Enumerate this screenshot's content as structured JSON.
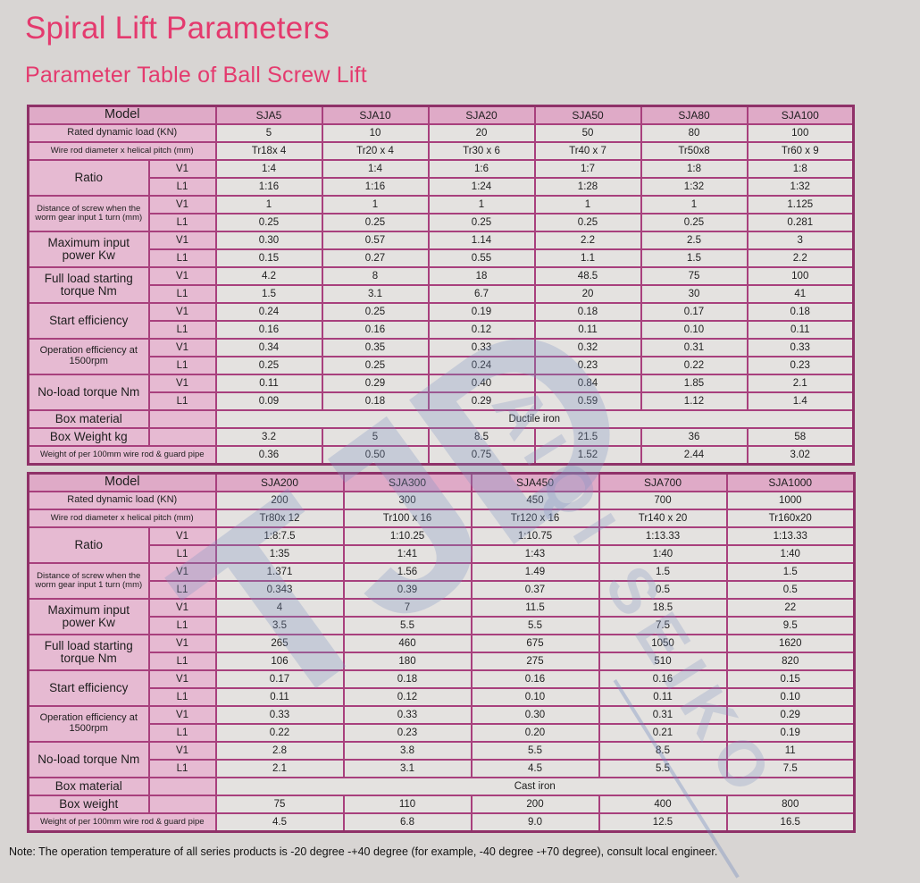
{
  "page": {
    "title": "Spiral Lift Parameters",
    "subtitle": "Parameter Table of Ball Screw Lift",
    "note": "Note: The operation temperature of all series products is -20 degree -+40 degree (for example, -40 degree -+70 degree), consult local engineer.",
    "watermark": {
      "big": "TJD",
      "small": "AIQI SEIKO"
    }
  },
  "colors": {
    "accent_pink": "#e43a6e",
    "header_cell_pink": "#dfaac7",
    "label_cell_pink": "#e6bad2",
    "table_border_magenta": "#a8407d",
    "data_cell_gray": "#e4e2e0",
    "page_background": "#d8d5d3",
    "watermark_blue": "#8094c2"
  },
  "tables": [
    {
      "header_label": "Model",
      "sub_labels": [
        "V1",
        "L1"
      ],
      "models": [
        "SJA5",
        "SJA10",
        "SJA20",
        "SJA50",
        "SJA80",
        "SJA100"
      ],
      "rows": [
        {
          "type": "single",
          "label": "Rated dynamic load (KN)",
          "values": [
            "5",
            "10",
            "20",
            "50",
            "80",
            "100"
          ]
        },
        {
          "type": "single",
          "label": "Wire rod diameter x helical pitch (mm)",
          "values": [
            "Tr18x 4",
            "Tr20 x 4",
            "Tr30 x 6",
            "Tr40 x 7",
            "Tr50x8",
            "Tr60 x 9"
          ]
        },
        {
          "type": "vl",
          "label": "Ratio",
          "v1": [
            "1:4",
            "1:4",
            "1:6",
            "1:7",
            "1:8",
            "1:8"
          ],
          "l1": [
            "1:16",
            "1:16",
            "1:24",
            "1:28",
            "1:32",
            "1:32"
          ]
        },
        {
          "type": "vl",
          "label": "Distance of screw when the worm gear input 1 turn (mm)",
          "v1": [
            "1",
            "1",
            "1",
            "1",
            "1",
            "1.125"
          ],
          "l1": [
            "0.25",
            "0.25",
            "0.25",
            "0.25",
            "0.25",
            "0.281"
          ]
        },
        {
          "type": "vl",
          "label": "Maximum input power Kw",
          "v1": [
            "0.30",
            "0.57",
            "1.14",
            "2.2",
            "2.5",
            "3"
          ],
          "l1": [
            "0.15",
            "0.27",
            "0.55",
            "1.1",
            "1.5",
            "2.2"
          ]
        },
        {
          "type": "vl",
          "label": "Full load starting torque Nm",
          "v1": [
            "4.2",
            "8",
            "18",
            "48.5",
            "75",
            "100"
          ],
          "l1": [
            "1.5",
            "3.1",
            "6.7",
            "20",
            "30",
            "41"
          ]
        },
        {
          "type": "vl",
          "label": "Start efficiency",
          "v1": [
            "0.24",
            "0.25",
            "0.19",
            "0.18",
            "0.17",
            "0.18"
          ],
          "l1": [
            "0.16",
            "0.16",
            "0.12",
            "0.11",
            "0.10",
            "0.11"
          ]
        },
        {
          "type": "vl",
          "label": "Operation efficiency at 1500rpm",
          "v1": [
            "0.34",
            "0.35",
            "0.33",
            "0.32",
            "0.31",
            "0.33"
          ],
          "l1": [
            "0.25",
            "0.25",
            "0.24",
            "0.23",
            "0.22",
            "0.23"
          ]
        },
        {
          "type": "vl",
          "label": "No-load torque Nm",
          "v1": [
            "0.11",
            "0.29",
            "0.40",
            "0.84",
            "1.85",
            "2.1"
          ],
          "l1": [
            "0.09",
            "0.18",
            "0.29",
            "0.59",
            "1.12",
            "1.4"
          ]
        },
        {
          "type": "span",
          "label": "Box material",
          "value": "Ductile iron"
        },
        {
          "type": "subempty",
          "label": "Box Weight kg",
          "values": [
            "3.2",
            "5",
            "8.5",
            "21.5",
            "36",
            "58"
          ]
        },
        {
          "type": "single",
          "label": "Weight of per 100mm wire rod & guard pipe",
          "values": [
            "0.36",
            "0.50",
            "0.75",
            "1.52",
            "2.44",
            "3.02"
          ]
        }
      ]
    },
    {
      "header_label": "Model",
      "sub_labels": [
        "V1",
        "L1"
      ],
      "models": [
        "SJA200",
        "SJA300",
        "SJA450",
        "SJA700",
        "SJA1000"
      ],
      "rows": [
        {
          "type": "single",
          "label": "Rated dynamic load (KN)",
          "values": [
            "200",
            "300",
            "450",
            "700",
            "1000"
          ]
        },
        {
          "type": "single",
          "label": "Wire rod diameter x helical pitch (mm)",
          "values": [
            "Tr80x 12",
            "Tr100 x 16",
            "Tr120 x 16",
            "Tr140 x 20",
            "Tr160x20"
          ]
        },
        {
          "type": "vl",
          "label": "Ratio",
          "v1": [
            "1:8:7.5",
            "1:10.25",
            "1:10.75",
            "1:13.33",
            "1:13.33"
          ],
          "l1": [
            "1:35",
            "1:41",
            "1:43",
            "1:40",
            "1:40"
          ]
        },
        {
          "type": "vl",
          "label": "Distance of screw when the worm gear input 1 turn (mm)",
          "v1": [
            "1.371",
            "1.56",
            "1.49",
            "1.5",
            "1.5"
          ],
          "l1": [
            "0.343",
            "0.39",
            "0.37",
            "0.5",
            "0.5"
          ]
        },
        {
          "type": "vl",
          "label": "Maximum input power Kw",
          "v1": [
            "4",
            "7",
            "11.5",
            "18.5",
            "22"
          ],
          "l1": [
            "3.5",
            "5.5",
            "5.5",
            "7.5",
            "9.5"
          ]
        },
        {
          "type": "vl",
          "label": "Full load starting torque Nm",
          "v1": [
            "265",
            "460",
            "675",
            "1050",
            "1620"
          ],
          "l1": [
            "106",
            "180",
            "275",
            "510",
            "820"
          ]
        },
        {
          "type": "vl",
          "label": "Start efficiency",
          "v1": [
            "0.17",
            "0.18",
            "0.16",
            "0.16",
            "0.15"
          ],
          "l1": [
            "0.11",
            "0.12",
            "0.10",
            "0.11",
            "0.10"
          ]
        },
        {
          "type": "vl",
          "label": "Operation efficiency at 1500rpm",
          "v1": [
            "0.33",
            "0.33",
            "0.30",
            "0.31",
            "0.29"
          ],
          "l1": [
            "0.22",
            "0.23",
            "0.20",
            "0.21",
            "0.19"
          ]
        },
        {
          "type": "vl",
          "label": "No-load torque Nm",
          "v1": [
            "2.8",
            "3.8",
            "5.5",
            "8.5",
            "11"
          ],
          "l1": [
            "2.1",
            "3.1",
            "4.5",
            "5.5",
            "7.5"
          ]
        },
        {
          "type": "span",
          "label": "Box material",
          "value": "Cast iron"
        },
        {
          "type": "subempty",
          "label": "Box weight",
          "values": [
            "75",
            "110",
            "200",
            "400",
            "800"
          ]
        },
        {
          "type": "single",
          "label": "Weight of per 100mm wire rod & guard pipe",
          "values": [
            "4.5",
            "6.8",
            "9.0",
            "12.5",
            "16.5"
          ]
        }
      ]
    }
  ]
}
